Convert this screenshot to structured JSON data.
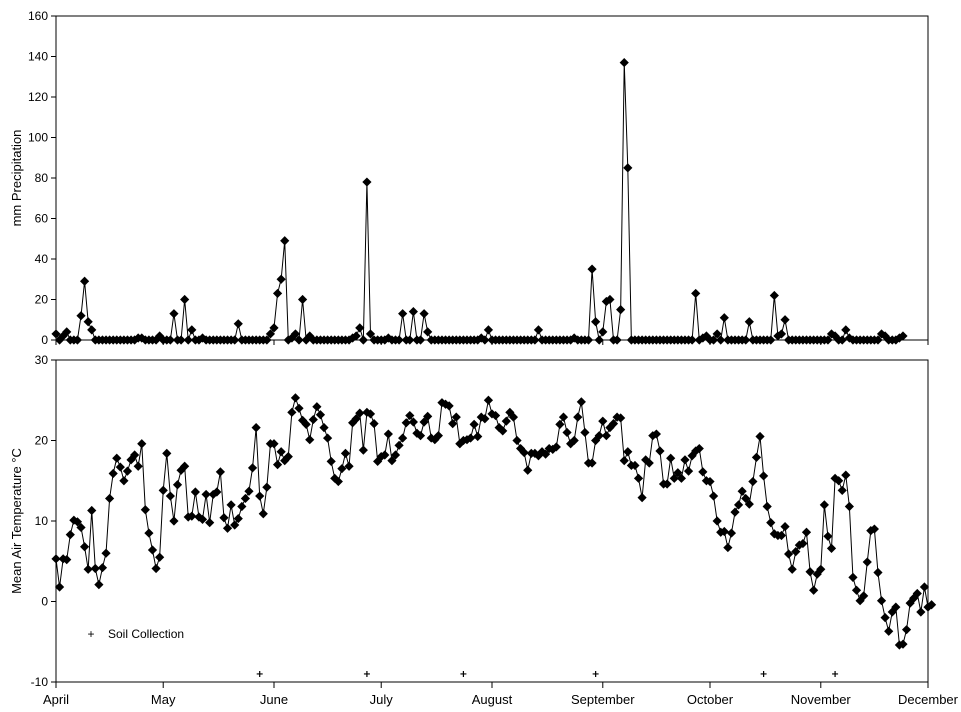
{
  "chart_data": [
    {
      "type": "line",
      "ylabel": "mm Precipitation",
      "ylim": [
        0,
        160
      ],
      "yticks": [
        0,
        20,
        40,
        60,
        80,
        100,
        120,
        140,
        160
      ],
      "xlim_days": [
        0,
        244
      ],
      "marker": "diamond",
      "series": [
        {
          "values": [
            3,
            0,
            2,
            4,
            0,
            0,
            0,
            12,
            29,
            9,
            5,
            0,
            0,
            0,
            0,
            0,
            0,
            0,
            0,
            0,
            0,
            0,
            0,
            1,
            1,
            0,
            0,
            0,
            0,
            2,
            0,
            0,
            0,
            13,
            0,
            0,
            20,
            0,
            5,
            0,
            0,
            1,
            0,
            0,
            0,
            0,
            0,
            0,
            0,
            0,
            0,
            8,
            0,
            0,
            0,
            0,
            0,
            0,
            0,
            0,
            3,
            6,
            23,
            30,
            49,
            0,
            1,
            3,
            0,
            20,
            0,
            2,
            0,
            0,
            0,
            0,
            0,
            0,
            0,
            0,
            0,
            0,
            0,
            1,
            2,
            6,
            0,
            78,
            3,
            0,
            0,
            0,
            0,
            1,
            0,
            0,
            0,
            13,
            0,
            0,
            14,
            0,
            0,
            13,
            4,
            0,
            0,
            0,
            0,
            0,
            0,
            0,
            0,
            0,
            0,
            0,
            0,
            0,
            0,
            1,
            0,
            5,
            0,
            0,
            0,
            0,
            0,
            0,
            0,
            0,
            0,
            0,
            0,
            0,
            0,
            5,
            0,
            0,
            0,
            0,
            0,
            0,
            0,
            0,
            0,
            1,
            0,
            0,
            0,
            0,
            35,
            9,
            0,
            4,
            19,
            20,
            0,
            0,
            15,
            137,
            85,
            0,
            0,
            0,
            0,
            0,
            0,
            0,
            0,
            0,
            0,
            0,
            0,
            0,
            0,
            0,
            0,
            0,
            0,
            23,
            0,
            1,
            2,
            0,
            0,
            3,
            0,
            11,
            0,
            0,
            0,
            0,
            0,
            0,
            9,
            0,
            0,
            0,
            0,
            0,
            0,
            22,
            2,
            3,
            10,
            0,
            0,
            0,
            0,
            0,
            0,
            0,
            0,
            0,
            0,
            0,
            0,
            3,
            2,
            0,
            0,
            5,
            1,
            0,
            0,
            0,
            0,
            0,
            0,
            0,
            0,
            3,
            2,
            0,
            0,
            0,
            1,
            2
          ]
        }
      ]
    },
    {
      "type": "line",
      "ylabel": "Mean Air Temperature °C",
      "ylim": [
        -10,
        30
      ],
      "yticks": [
        -10,
        0,
        10,
        20,
        30
      ],
      "xlim_days": [
        0,
        244
      ],
      "marker": "diamond",
      "series": [
        {
          "values": [
            5.3,
            1.8,
            5.3,
            5.2,
            8.3,
            10.1,
            9.9,
            9.2,
            6.8,
            4.0,
            11.3,
            4.1,
            2.1,
            4.2,
            6.0,
            12.8,
            15.9,
            17.8,
            16.7,
            15.0,
            16.2,
            17.6,
            18.2,
            16.8,
            19.6,
            11.4,
            8.5,
            6.4,
            4.1,
            5.5,
            13.8,
            18.4,
            13.1,
            10.0,
            14.5,
            16.3,
            16.8,
            10.5,
            10.6,
            13.6,
            10.5,
            10.2,
            13.3,
            9.8,
            13.3,
            13.6,
            16.1,
            10.4,
            9.1,
            12.0,
            9.5,
            10.3,
            11.8,
            12.8,
            13.7,
            16.6,
            21.6,
            13.1,
            10.9,
            14.2,
            19.6,
            19.6,
            17.0,
            18.6,
            17.5,
            18.0,
            23.5,
            25.3,
            24.0,
            22.5,
            22.0,
            20.1,
            22.6,
            24.2,
            23.2,
            21.6,
            20.3,
            17.4,
            15.3,
            14.9,
            16.5,
            18.4,
            16.8,
            22.2,
            22.7,
            23.4,
            18.8,
            23.5,
            23.3,
            22.1,
            17.4,
            18.0,
            18.2,
            20.8,
            17.5,
            18.2,
            19.4,
            20.3,
            22.2,
            23.1,
            22.3,
            20.9,
            20.6,
            22.3,
            23.0,
            20.3,
            20.1,
            20.6,
            24.7,
            24.5,
            24.3,
            22.1,
            22.9,
            19.6,
            20.0,
            20.1,
            20.3,
            22.0,
            20.5,
            22.9,
            22.7,
            25.0,
            23.3,
            23.1,
            21.6,
            21.2,
            22.4,
            23.5,
            22.9,
            20.0,
            19.0,
            18.5,
            16.3,
            18.4,
            18.4,
            18.1,
            18.6,
            18.3,
            19.0,
            18.9,
            19.2,
            22.0,
            22.9,
            21.0,
            19.6,
            20.0,
            22.9,
            24.8,
            21.0,
            17.2,
            17.2,
            20.0,
            20.6,
            22.4,
            20.6,
            21.6,
            22.1,
            22.9,
            22.8,
            17.5,
            18.6,
            16.9,
            16.9,
            15.3,
            12.9,
            17.6,
            17.2,
            20.6,
            20.8,
            18.7,
            14.6,
            14.6,
            17.8,
            15.3,
            16.0,
            15.3,
            17.6,
            16.2,
            18.1,
            18.7,
            19.0,
            16.1,
            15.0,
            14.9,
            13.1,
            10.0,
            8.6,
            8.7,
            6.7,
            8.5,
            11.1,
            12.0,
            13.7,
            12.8,
            12.1,
            14.9,
            17.9,
            20.5,
            15.6,
            11.8,
            9.8,
            8.4,
            8.2,
            8.2,
            9.3,
            5.9,
            4.0,
            6.2,
            7.0,
            7.2,
            8.6,
            3.7,
            1.4,
            3.4,
            4.0,
            12.0,
            8.1,
            6.6,
            15.3,
            15.0,
            13.8,
            15.7,
            11.8,
            3.0,
            1.4,
            0.1,
            0.7,
            4.9,
            8.8,
            9.0,
            3.6,
            0.1,
            -2.0,
            -3.7,
            -1.3,
            -0.7,
            -5.4,
            -5.3,
            -3.5,
            -0.2,
            0.4,
            1.0,
            -1.3,
            1.8,
            -0.7,
            -0.4
          ]
        }
      ],
      "soil_collection_days": [
        57,
        87,
        114,
        151,
        198,
        218
      ],
      "soil_collection_value": -9,
      "legend": {
        "label": "Soil Collection",
        "placement": "bottom-left"
      }
    }
  ],
  "x_axis": {
    "months": [
      "April",
      "May",
      "June",
      "July",
      "August",
      "September",
      "October",
      "November",
      "December"
    ],
    "month_days": [
      0,
      30,
      61,
      91,
      122,
      153,
      183,
      214,
      244
    ]
  }
}
